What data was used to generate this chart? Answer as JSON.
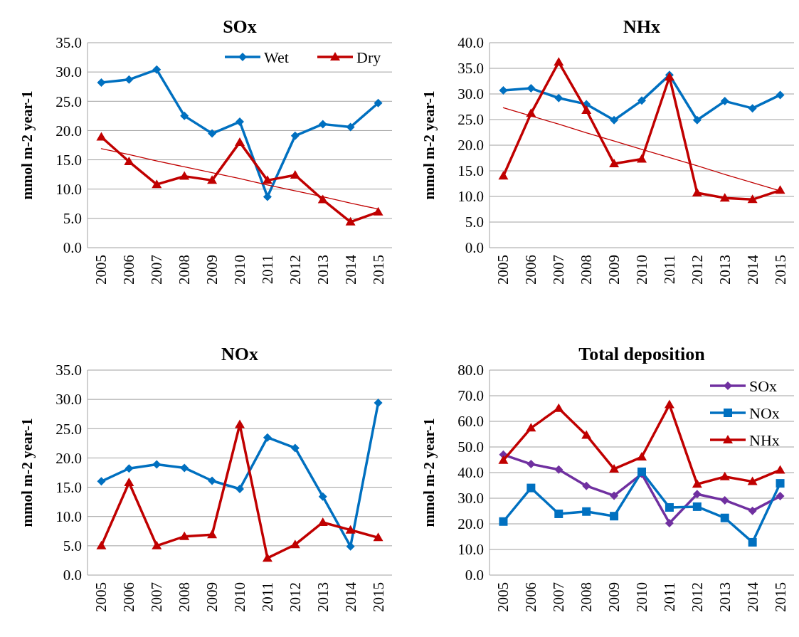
{
  "chart_data": [
    {
      "type": "line",
      "title": "SOx",
      "ylabel": "mmol m-2 year-1",
      "categories": [
        "2005",
        "2006",
        "2007",
        "2008",
        "2009",
        "2010",
        "2011",
        "2012",
        "2013",
        "2014",
        "2015"
      ],
      "ylim": [
        0,
        35
      ],
      "yticks": [
        {
          "value": 0,
          "label": "0.0"
        },
        {
          "value": 5,
          "label": "5.0"
        },
        {
          "value": 10,
          "label": "10.0"
        },
        {
          "value": 15,
          "label": "15.0"
        },
        {
          "value": 20,
          "label": "20.0"
        },
        {
          "value": 25,
          "label": "25.0"
        },
        {
          "value": 30,
          "label": "30.0"
        },
        {
          "value": 35,
          "label": "35.0"
        }
      ],
      "grid": "y",
      "legend": "top right",
      "series": [
        {
          "name": "Wet",
          "color": "#0070c0",
          "marker": "diamond",
          "values": [
            28.2,
            28.7,
            30.4,
            22.5,
            19.5,
            21.5,
            8.7,
            19.1,
            21.1,
            20.6,
            24.7
          ]
        },
        {
          "name": "Dry",
          "color": "#c00000",
          "marker": "triangle",
          "values": [
            18.9,
            14.7,
            10.8,
            12.2,
            11.5,
            18.0,
            11.5,
            12.4,
            8.2,
            4.4,
            6.1
          ]
        },
        {
          "color": "#c00000",
          "marker": "none",
          "values": [
            16.9,
            15.9,
            14.8,
            13.8,
            12.8,
            11.8,
            10.7,
            9.7,
            8.7,
            7.6,
            6.6
          ]
        }
      ]
    },
    {
      "type": "line",
      "title": "NHx",
      "ylabel": "mmol m-2 year-1",
      "categories": [
        "2005",
        "2006",
        "2007",
        "2008",
        "2009",
        "2010",
        "2011",
        "2012",
        "2013",
        "2014",
        "2015"
      ],
      "ylim": [
        0,
        40
      ],
      "yticks": [
        {
          "value": 0,
          "label": "0.0"
        },
        {
          "value": 5,
          "label": "5.0"
        },
        {
          "value": 10,
          "label": "10.0"
        },
        {
          "value": 15,
          "label": "15.0"
        },
        {
          "value": 20,
          "label": "20.0"
        },
        {
          "value": 25,
          "label": "25.0"
        },
        {
          "value": 30,
          "label": "30.0"
        },
        {
          "value": 35,
          "label": "35.0"
        },
        {
          "value": 40,
          "label": "40.0"
        }
      ],
      "grid": "y",
      "series": [
        {
          "color": "#0070c0",
          "marker": "diamond",
          "values": [
            30.7,
            31.1,
            29.2,
            28.0,
            24.9,
            28.7,
            33.7,
            24.9,
            28.6,
            27.2,
            29.8
          ]
        },
        {
          "color": "#c00000",
          "marker": "triangle",
          "values": [
            14.0,
            26.2,
            36.2,
            26.8,
            16.4,
            17.3,
            33.3,
            10.7,
            9.7,
            9.4,
            11.2
          ]
        },
        {
          "color": "#c00000",
          "marker": "none",
          "values": [
            27.3,
            25.7,
            24.1,
            22.4,
            20.8,
            19.2,
            17.6,
            16.0,
            14.3,
            12.7,
            11.1
          ]
        }
      ]
    },
    {
      "type": "line",
      "title": "NOx",
      "ylabel": "mmol m-2 year-1",
      "categories": [
        "2005",
        "2006",
        "2007",
        "2008",
        "2009",
        "2010",
        "2011",
        "2012",
        "2013",
        "2014",
        "2015"
      ],
      "ylim": [
        0,
        35
      ],
      "yticks": [
        {
          "value": 0,
          "label": "0.0"
        },
        {
          "value": 5,
          "label": "5.0"
        },
        {
          "value": 10,
          "label": "10.0"
        },
        {
          "value": 15,
          "label": "15.0"
        },
        {
          "value": 20,
          "label": "20.0"
        },
        {
          "value": 25,
          "label": "25.0"
        },
        {
          "value": 30,
          "label": "30.0"
        },
        {
          "value": 35,
          "label": "35.0"
        }
      ],
      "grid": "y",
      "series": [
        {
          "color": "#0070c0",
          "marker": "diamond",
          "values": [
            16.0,
            18.2,
            18.9,
            18.3,
            16.1,
            14.7,
            23.5,
            21.7,
            13.4,
            4.9,
            29.4
          ]
        },
        {
          "color": "#c00000",
          "marker": "triangle",
          "values": [
            5.0,
            15.8,
            5.0,
            6.6,
            6.9,
            25.7,
            2.9,
            5.2,
            9.0,
            7.7,
            6.4
          ]
        }
      ]
    },
    {
      "type": "line",
      "title": "Total deposition",
      "ylabel": "mmol m-2 year-1",
      "categories": [
        "2005",
        "2006",
        "2007",
        "2008",
        "2009",
        "2010",
        "2011",
        "2012",
        "2013",
        "2014",
        "2015"
      ],
      "ylim": [
        0,
        80
      ],
      "yticks": [
        {
          "value": 0,
          "label": "0.0"
        },
        {
          "value": 10,
          "label": "10.0"
        },
        {
          "value": 20,
          "label": "20.0"
        },
        {
          "value": 30,
          "label": "30.0"
        },
        {
          "value": 40,
          "label": "40.0"
        },
        {
          "value": 50,
          "label": "50.0"
        },
        {
          "value": 60,
          "label": "60.0"
        },
        {
          "value": 70,
          "label": "70.0"
        },
        {
          "value": 80,
          "label": "80.0"
        }
      ],
      "grid": "y",
      "legend": "top right",
      "series": [
        {
          "name": "SOx",
          "color": "#7030a0",
          "marker": "diamond",
          "values": [
            47.0,
            43.3,
            41.2,
            34.8,
            31.0,
            39.5,
            20.3,
            31.6,
            29.2,
            25.1,
            30.8
          ]
        },
        {
          "name": "NOx",
          "color": "#0070c0",
          "marker": "square",
          "values": [
            20.9,
            34.0,
            23.9,
            24.8,
            23.0,
            40.3,
            26.4,
            26.7,
            22.3,
            12.8,
            35.8
          ]
        },
        {
          "name": "NHx",
          "color": "#c00000",
          "marker": "triangle",
          "values": [
            44.8,
            57.4,
            65.1,
            54.6,
            41.4,
            46.1,
            66.5,
            35.5,
            38.4,
            36.5,
            41.0
          ]
        }
      ]
    }
  ]
}
